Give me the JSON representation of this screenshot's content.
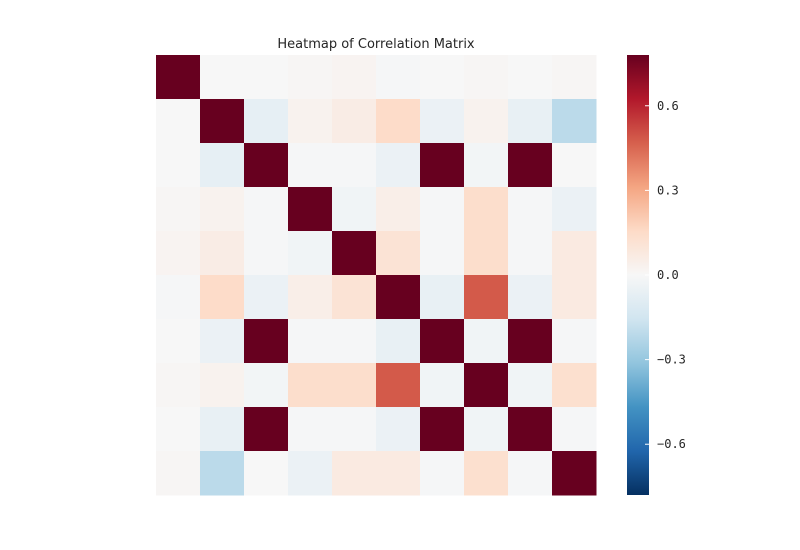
{
  "chart_data": {
    "type": "heatmap",
    "title": "Heatmap of Correlation Matrix",
    "xlabel": "",
    "ylabel": "",
    "colormap": "RdBu_r",
    "vmin": -0.78,
    "vmax": 0.78,
    "colorbar_ticks": [
      -0.6,
      -0.3,
      0.0,
      0.3,
      0.6
    ],
    "colorbar_tick_labels": [
      "−0.6",
      "−0.3",
      "0.0",
      "0.3",
      "0.6"
    ],
    "grid": false,
    "values": [
      [
        1.0,
        0.0,
        0.0,
        0.01,
        0.02,
        -0.01,
        0.0,
        0.01,
        0.0,
        0.01
      ],
      [
        0.0,
        1.0,
        -0.07,
        0.03,
        0.06,
        0.15,
        -0.05,
        0.03,
        -0.06,
        -0.21
      ],
      [
        0.0,
        -0.07,
        1.0,
        -0.01,
        -0.01,
        -0.05,
        1.0,
        -0.02,
        1.0,
        0.0
      ],
      [
        0.01,
        0.03,
        -0.01,
        1.0,
        -0.03,
        0.05,
        -0.01,
        0.14,
        -0.01,
        -0.05
      ],
      [
        0.02,
        0.06,
        -0.01,
        -0.03,
        1.0,
        0.11,
        -0.01,
        0.14,
        -0.01,
        0.07
      ],
      [
        -0.01,
        0.15,
        -0.05,
        0.05,
        0.11,
        1.0,
        -0.06,
        0.48,
        -0.05,
        0.07
      ],
      [
        0.0,
        -0.05,
        1.0,
        -0.01,
        -0.01,
        -0.06,
        1.0,
        -0.03,
        1.0,
        -0.01
      ],
      [
        0.01,
        0.03,
        -0.02,
        0.14,
        0.14,
        0.48,
        -0.03,
        1.0,
        -0.03,
        0.13
      ],
      [
        0.0,
        -0.06,
        1.0,
        -0.01,
        -0.01,
        -0.05,
        1.0,
        -0.03,
        1.0,
        -0.01
      ],
      [
        0.01,
        -0.21,
        0.0,
        -0.05,
        0.07,
        0.07,
        -0.01,
        0.13,
        -0.01,
        1.0
      ]
    ]
  }
}
